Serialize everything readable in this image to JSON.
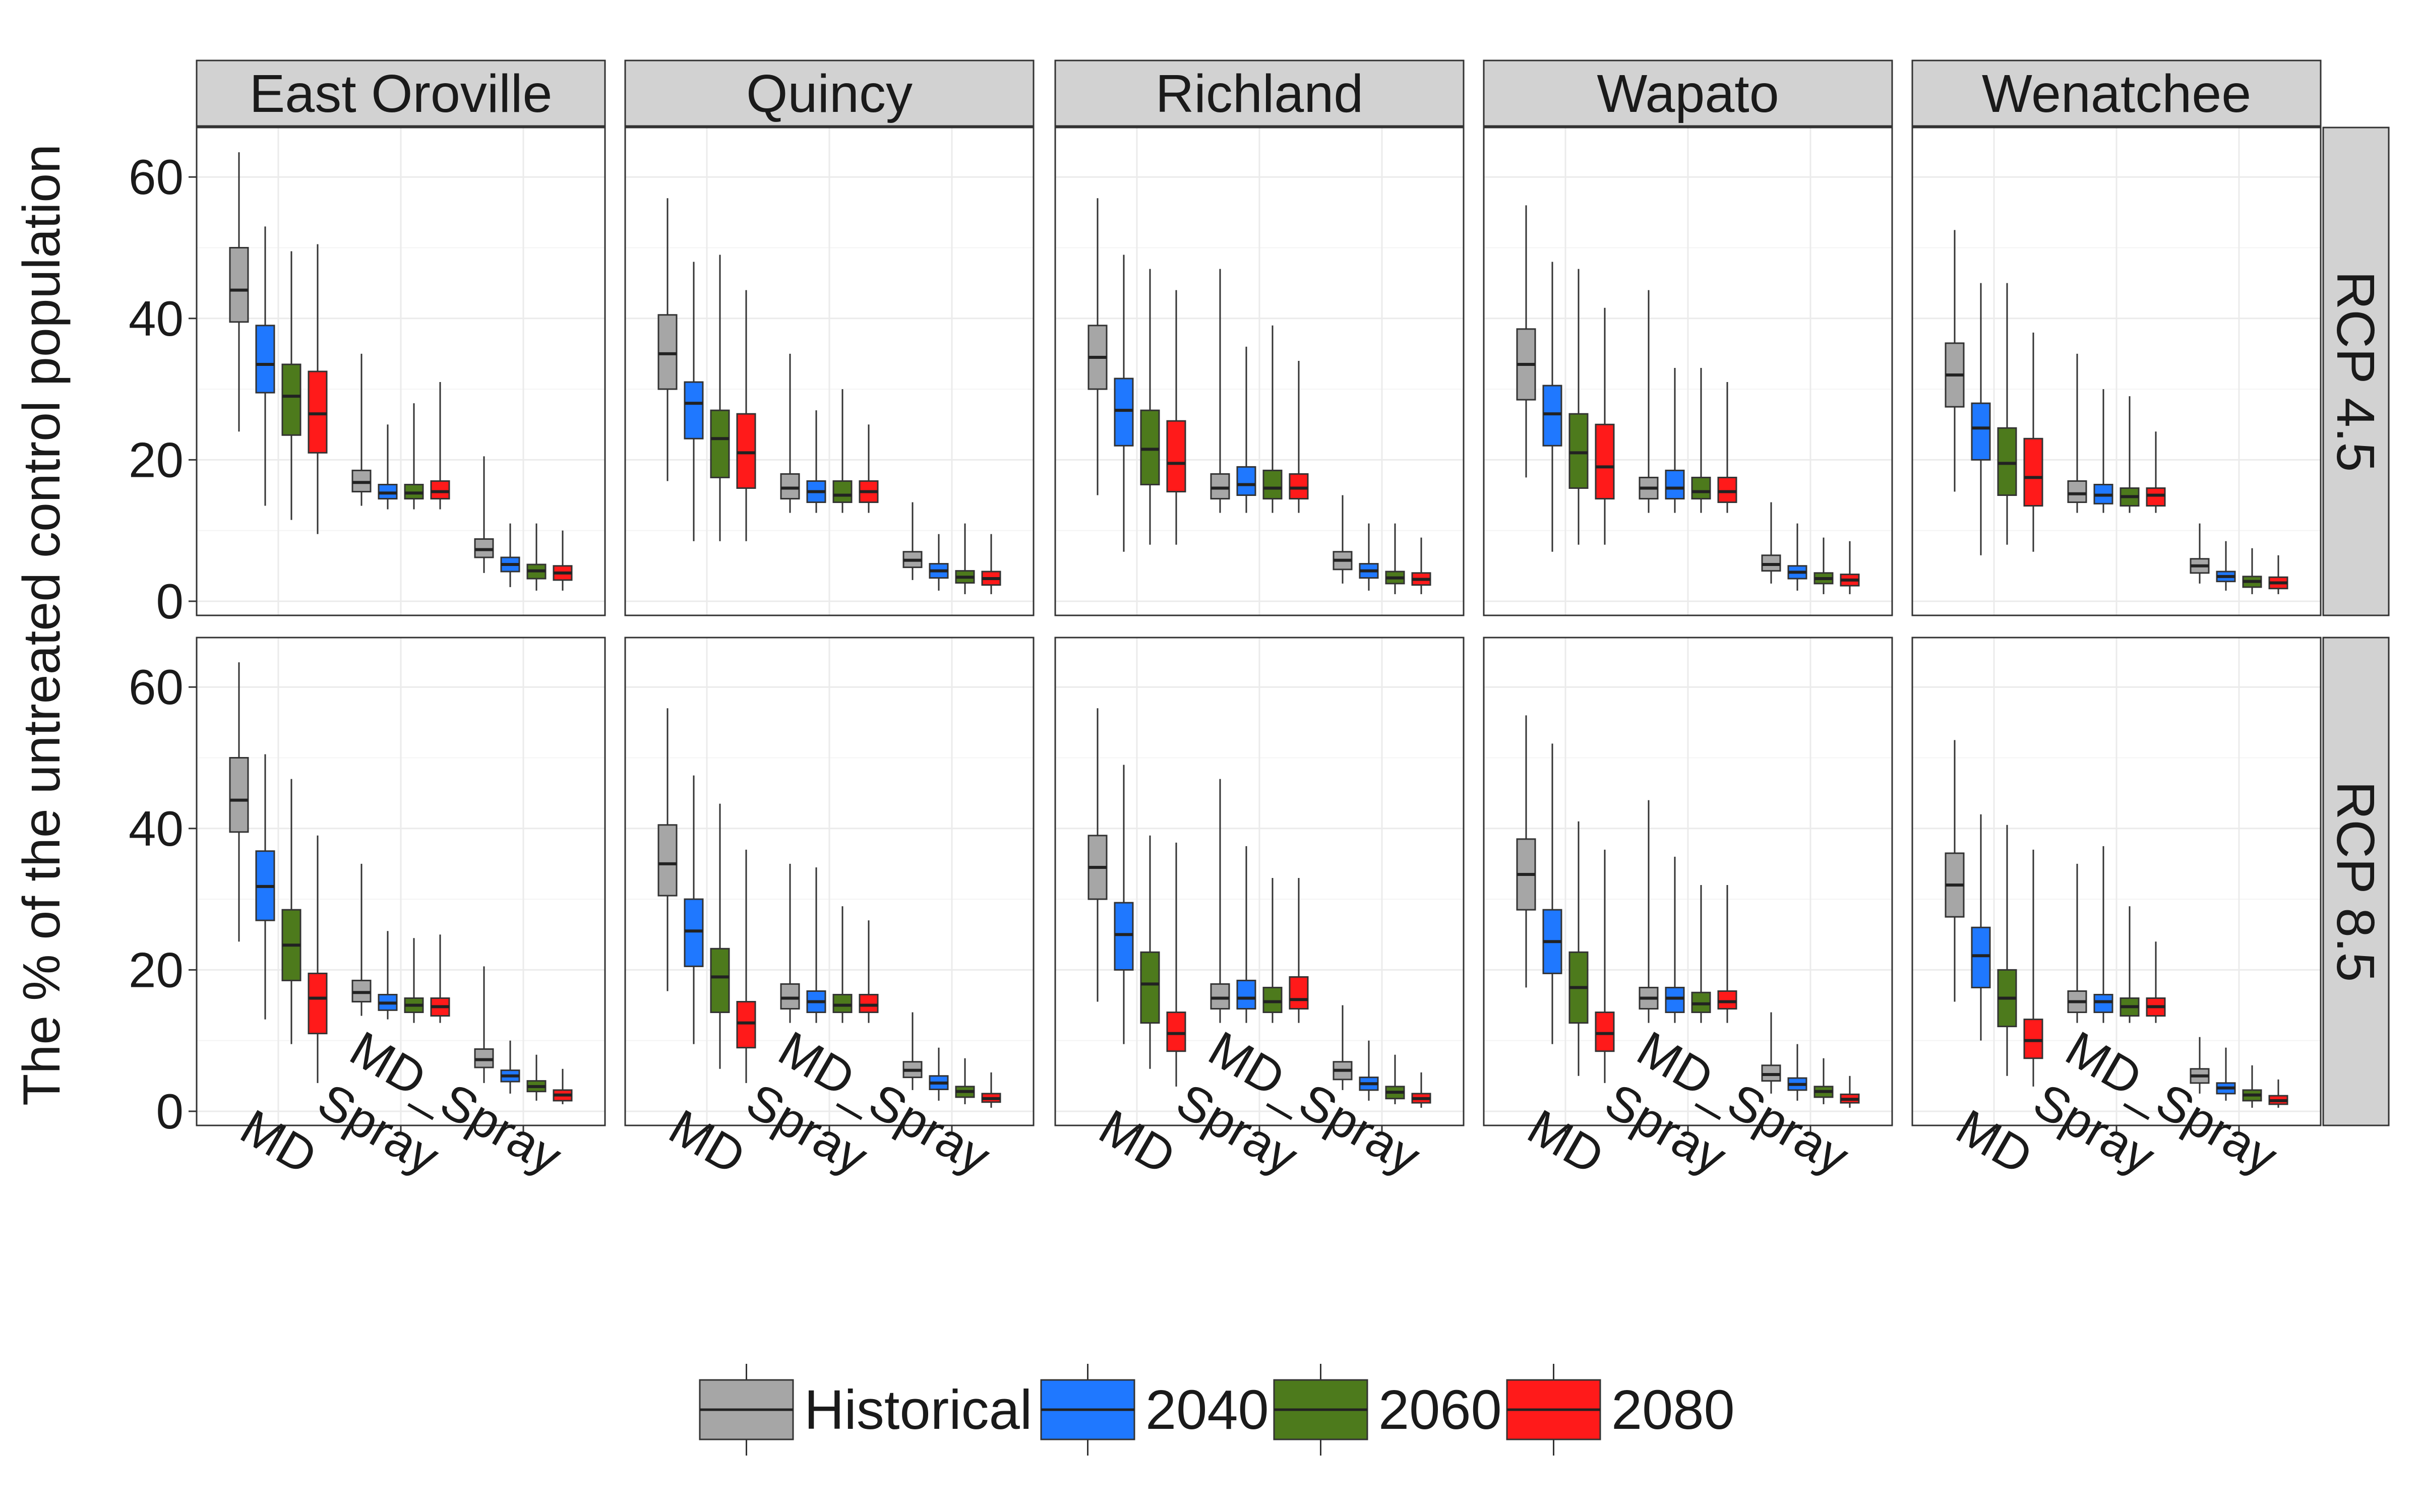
{
  "chart_data": {
    "type": "boxplot",
    "ylabel": "The % of the untreated control population",
    "xlabel": "",
    "ylim": [
      -2,
      67
    ],
    "yticks": [
      0,
      20,
      40,
      60
    ],
    "grid": true,
    "legend_position": "bottom",
    "categories": [
      "MD",
      "Spray",
      "MD_Spray"
    ],
    "series": [
      {
        "name": "Historical",
        "color": "#a6a6a6"
      },
      {
        "name": "2040",
        "color": "#1f78ff"
      },
      {
        "name": "2060",
        "color": "#4d7a1c"
      },
      {
        "name": "2080",
        "color": "#ff1a1a"
      }
    ],
    "columns": [
      "East Oroville",
      "Quincy",
      "Richland",
      "Wapato",
      "Wenatchee"
    ],
    "rows": [
      "RCP 4.5",
      "RCP 8.5"
    ],
    "panels": [
      {
        "column": "East Oroville",
        "row": "RCP 4.5",
        "boxes": {
          "MD": [
            [
              24,
              39.5,
              44,
              50,
              63.5
            ],
            [
              13.5,
              29.5,
              33.5,
              39,
              53
            ],
            [
              11.5,
              23.5,
              29,
              33.5,
              49.5
            ],
            [
              9.5,
              21,
              26.5,
              32.5,
              50.5
            ]
          ],
          "Spray": [
            [
              13.5,
              15.5,
              16.8,
              18.5,
              35
            ],
            [
              13,
              14.5,
              15.3,
              16.5,
              25
            ],
            [
              13,
              14.5,
              15.3,
              16.5,
              28
            ],
            [
              13,
              14.5,
              15.5,
              17,
              31
            ]
          ],
          "MD_Spray": [
            [
              4,
              6.2,
              7.3,
              8.8,
              20.5
            ],
            [
              2,
              4.2,
              5.2,
              6.2,
              11
            ],
            [
              1.5,
              3.2,
              4.3,
              5.2,
              11
            ],
            [
              1.5,
              3,
              4,
              5,
              10
            ]
          ]
        }
      },
      {
        "column": "Quincy",
        "row": "RCP 4.5",
        "boxes": {
          "MD": [
            [
              17,
              30,
              35,
              40.5,
              57
            ],
            [
              8.5,
              23,
              28,
              31,
              48
            ],
            [
              8.5,
              17.5,
              23,
              27,
              49
            ],
            [
              8.5,
              16,
              21,
              26.5,
              44
            ]
          ],
          "Spray": [
            [
              12.5,
              14.5,
              16,
              18,
              35
            ],
            [
              12.5,
              14,
              15.5,
              17,
              27
            ],
            [
              12.5,
              14,
              15,
              17,
              30
            ],
            [
              12.5,
              14,
              15.5,
              17,
              25
            ]
          ],
          "MD_Spray": [
            [
              3,
              4.8,
              5.8,
              7,
              14
            ],
            [
              1.5,
              3.3,
              4.3,
              5.3,
              9.5
            ],
            [
              1,
              2.6,
              3.4,
              4.3,
              11
            ],
            [
              1,
              2.3,
              3.2,
              4.2,
              9.5
            ]
          ]
        }
      },
      {
        "column": "Richland",
        "row": "RCP 4.5",
        "boxes": {
          "MD": [
            [
              15,
              30,
              34.5,
              39,
              57
            ],
            [
              7,
              22,
              27,
              31.5,
              49
            ],
            [
              8,
              16.5,
              21.5,
              27,
              47
            ],
            [
              8,
              15.5,
              19.5,
              25.5,
              44
            ]
          ],
          "Spray": [
            [
              12.5,
              14.5,
              16,
              18,
              47
            ],
            [
              12.5,
              15,
              16.5,
              19,
              36
            ],
            [
              12.5,
              14.5,
              16,
              18.5,
              39
            ],
            [
              12.5,
              14.5,
              16,
              18,
              34
            ]
          ],
          "MD_Spray": [
            [
              2.5,
              4.5,
              5.8,
              7,
              15
            ],
            [
              1.5,
              3.3,
              4.3,
              5.3,
              11
            ],
            [
              1,
              2.5,
              3.3,
              4.2,
              11
            ],
            [
              1,
              2.3,
              3.1,
              4,
              9
            ]
          ]
        }
      },
      {
        "column": "Wapato",
        "row": "RCP 4.5",
        "boxes": {
          "MD": [
            [
              17.5,
              28.5,
              33.5,
              38.5,
              56
            ],
            [
              7,
              22,
              26.5,
              30.5,
              48
            ],
            [
              8,
              16,
              21,
              26.5,
              47
            ],
            [
              8,
              14.5,
              19,
              25,
              41.5
            ]
          ],
          "Spray": [
            [
              12.5,
              14.5,
              16,
              17.5,
              44
            ],
            [
              12.5,
              14.5,
              16,
              18.5,
              33
            ],
            [
              12.5,
              14.5,
              15.5,
              17.5,
              33
            ],
            [
              12.5,
              14,
              15.5,
              17.5,
              31
            ]
          ],
          "MD_Spray": [
            [
              2.5,
              4.3,
              5.2,
              6.5,
              14
            ],
            [
              1.5,
              3.2,
              4.1,
              5,
              11
            ],
            [
              1,
              2.5,
              3.2,
              4,
              9
            ],
            [
              1,
              2.2,
              3,
              3.8,
              8.5
            ]
          ]
        }
      },
      {
        "column": "Wenatchee",
        "row": "RCP 4.5",
        "boxes": {
          "MD": [
            [
              15.5,
              27.5,
              32,
              36.5,
              52.5
            ],
            [
              6.5,
              20,
              24.5,
              28,
              45
            ],
            [
              8,
              15,
              19.5,
              24.5,
              45
            ],
            [
              7,
              13.5,
              17.5,
              23,
              38
            ]
          ],
          "Spray": [
            [
              12.5,
              14,
              15.2,
              17,
              35
            ],
            [
              12.5,
              13.8,
              15,
              16.5,
              30
            ],
            [
              12.5,
              13.5,
              14.8,
              16,
              29
            ],
            [
              12.5,
              13.5,
              15,
              16,
              24
            ]
          ],
          "MD_Spray": [
            [
              2.5,
              4,
              5,
              6,
              11
            ],
            [
              1.5,
              2.8,
              3.5,
              4.2,
              8.5
            ],
            [
              1,
              2,
              2.8,
              3.5,
              7.5
            ],
            [
              1,
              1.8,
              2.6,
              3.4,
              6.5
            ]
          ]
        }
      },
      {
        "column": "East Oroville",
        "row": "RCP 8.5",
        "boxes": {
          "MD": [
            [
              24,
              39.5,
              44,
              50,
              63.5
            ],
            [
              13,
              27,
              31.8,
              36.8,
              50.5
            ],
            [
              9.5,
              18.5,
              23.5,
              28.5,
              47
            ],
            [
              4,
              11,
              16,
              19.5,
              39
            ]
          ],
          "Spray": [
            [
              13.5,
              15.5,
              16.8,
              18.5,
              35
            ],
            [
              13,
              14.3,
              15.3,
              16.5,
              25.5
            ],
            [
              12.5,
              14,
              15,
              16,
              24.5
            ],
            [
              12.5,
              13.5,
              14.8,
              16,
              25
            ]
          ],
          "MD_Spray": [
            [
              4,
              6.2,
              7.3,
              8.8,
              20.5
            ],
            [
              2.5,
              4.2,
              5,
              5.8,
              10
            ],
            [
              1.5,
              2.8,
              3.5,
              4.3,
              8
            ],
            [
              1,
              1.5,
              2.3,
              3,
              6
            ]
          ]
        }
      },
      {
        "column": "Quincy",
        "row": "RCP 8.5",
        "boxes": {
          "MD": [
            [
              17,
              30.5,
              35,
              40.5,
              57
            ],
            [
              9.5,
              20.5,
              25.5,
              30,
              47.5
            ],
            [
              6,
              14,
              19,
              23,
              43.5
            ],
            [
              4,
              9,
              12.5,
              15.5,
              37
            ]
          ],
          "Spray": [
            [
              12.5,
              14.5,
              16,
              18,
              35
            ],
            [
              12.5,
              14,
              15.5,
              17,
              34.5
            ],
            [
              12.5,
              14,
              15,
              16.5,
              29
            ],
            [
              12.5,
              14,
              15,
              16.5,
              27
            ]
          ],
          "MD_Spray": [
            [
              3,
              4.8,
              5.8,
              7,
              14
            ],
            [
              1.5,
              3.1,
              4,
              5,
              9
            ],
            [
              1,
              2,
              2.8,
              3.5,
              7.5
            ],
            [
              0.5,
              1.3,
              1.8,
              2.5,
              5.5
            ]
          ]
        }
      },
      {
        "column": "Richland",
        "row": "RCP 8.5",
        "boxes": {
          "MD": [
            [
              15.5,
              30,
              34.5,
              39,
              57
            ],
            [
              9.5,
              20,
              25,
              29.5,
              49
            ],
            [
              6,
              12.5,
              18,
              22.5,
              39
            ],
            [
              3.5,
              8.5,
              11,
              14,
              38
            ]
          ],
          "Spray": [
            [
              12.5,
              14.5,
              16,
              18,
              47
            ],
            [
              12.5,
              14.5,
              16,
              18.5,
              37.5
            ],
            [
              12.5,
              14,
              15.5,
              17.5,
              33
            ],
            [
              12.5,
              14.5,
              15.8,
              19,
              33
            ]
          ],
          "MD_Spray": [
            [
              3,
              4.5,
              5.8,
              7,
              15
            ],
            [
              1.5,
              3,
              3.9,
              4.8,
              10
            ],
            [
              1,
              1.8,
              2.7,
              3.5,
              8
            ],
            [
              0.5,
              1.2,
              1.8,
              2.5,
              5.5
            ]
          ]
        }
      },
      {
        "column": "Wapato",
        "row": "RCP 8.5",
        "boxes": {
          "MD": [
            [
              17.5,
              28.5,
              33.5,
              38.5,
              56
            ],
            [
              9.5,
              19.5,
              24,
              28.5,
              52
            ],
            [
              5,
              12.5,
              17.5,
              22.5,
              41
            ],
            [
              4,
              8.5,
              11,
              14,
              37
            ]
          ],
          "Spray": [
            [
              12.5,
              14.5,
              16,
              17.5,
              44
            ],
            [
              12.5,
              14,
              16,
              17.5,
              36
            ],
            [
              12.5,
              14,
              15.2,
              16.8,
              32
            ],
            [
              12.5,
              14.5,
              15.5,
              17,
              32
            ]
          ],
          "MD_Spray": [
            [
              2.5,
              4.3,
              5.2,
              6.5,
              14
            ],
            [
              1.5,
              3,
              3.8,
              4.7,
              9.5
            ],
            [
              1,
              2,
              2.8,
              3.5,
              7.5
            ],
            [
              0.5,
              1.2,
              1.7,
              2.4,
              5
            ]
          ]
        }
      },
      {
        "column": "Wenatchee",
        "row": "RCP 8.5",
        "boxes": {
          "MD": [
            [
              15.5,
              27.5,
              32,
              36.5,
              52.5
            ],
            [
              10,
              17.5,
              22,
              26,
              42
            ],
            [
              5,
              12,
              16,
              20,
              40.5
            ],
            [
              3.5,
              7.5,
              10,
              13,
              37
            ]
          ],
          "Spray": [
            [
              12.5,
              14,
              15.5,
              17,
              35
            ],
            [
              12.5,
              14,
              15.5,
              16.5,
              37.5
            ],
            [
              12.5,
              13.5,
              14.8,
              16,
              29
            ],
            [
              12.5,
              13.5,
              14.8,
              16,
              24
            ]
          ],
          "MD_Spray": [
            [
              2.5,
              4,
              5,
              6,
              10.5
            ],
            [
              1.5,
              2.5,
              3.3,
              4,
              9
            ],
            [
              0.5,
              1.5,
              2.3,
              3,
              6.5
            ],
            [
              0.5,
              1,
              1.5,
              2.2,
              4.5
            ]
          ]
        }
      }
    ]
  }
}
